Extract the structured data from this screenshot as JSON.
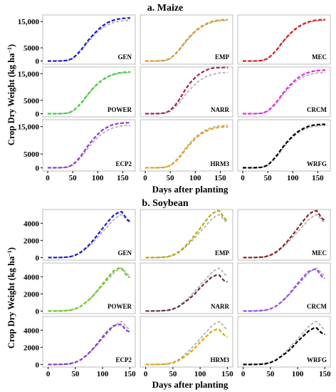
{
  "figure": {
    "y_label_prefix": "Crop Dry Weight (kg ha",
    "y_label_sup": "−1",
    "y_label_suffix": ")"
  },
  "colors": {
    "reference": "#aaaaaa",
    "GEN": "#1a1ad6",
    "EMP": "#e0961e",
    "MEC": "#e01818",
    "POWER": "#33d633",
    "NARR": "#aa2244",
    "CRCM": "#ee22ee",
    "ECP2": "#9933dd",
    "HRM3": "#f0a010",
    "WRFG": "#000000"
  },
  "soybean_colors": {
    "GEN": "#1a1ad6",
    "EMP": "#b8a800",
    "MEC": "#882222",
    "POWER": "#66cc11",
    "NARR": "#663333",
    "CRCM": "#9944ee",
    "ECP2": "#8833cc",
    "HRM3": "#ddaa00",
    "WRFG": "#000000"
  },
  "chart_data": [
    {
      "type": "line",
      "title": "a. Maize",
      "ylabel": "Crop Dry Weight (kg ha−1)",
      "xlabel": "Days after planting",
      "xlim": [
        -10,
        175
      ],
      "ylim": [
        -1200,
        17500
      ],
      "xticks": [
        0,
        50,
        100,
        150
      ],
      "yticks": [
        0,
        5000,
        15000
      ],
      "x": [
        0,
        10,
        20,
        30,
        40,
        50,
        60,
        70,
        80,
        90,
        100,
        110,
        120,
        130,
        140,
        150,
        160,
        165
      ],
      "reference": [
        0,
        0,
        0,
        50,
        200,
        900,
        2500,
        4500,
        7000,
        9200,
        11100,
        12600,
        13700,
        14500,
        15000,
        15300,
        15400,
        15400
      ],
      "panels": [
        {
          "name": "GEN",
          "values": [
            0,
            0,
            0,
            60,
            250,
            1000,
            2800,
            5000,
            7600,
            9800,
            11800,
            13400,
            14600,
            15400,
            15900,
            16200,
            16300,
            16300
          ]
        },
        {
          "name": "EMP",
          "values": [
            0,
            0,
            0,
            55,
            230,
            950,
            2650,
            4750,
            7300,
            9500,
            11400,
            12900,
            14000,
            14800,
            15300,
            15600,
            15700,
            15700
          ]
        },
        {
          "name": "MEC",
          "values": [
            0,
            0,
            0,
            55,
            230,
            950,
            2650,
            4750,
            7300,
            9500,
            11400,
            12900,
            14000,
            14800,
            15300,
            15600,
            15700,
            15700
          ]
        },
        {
          "name": "POWER",
          "values": [
            0,
            0,
            0,
            55,
            220,
            950,
            2600,
            4700,
            7200,
            9400,
            11300,
            12800,
            13900,
            14700,
            15200,
            15500,
            15600,
            15600
          ]
        },
        {
          "name": "NARR",
          "values": [
            0,
            0,
            0,
            70,
            300,
            1200,
            3200,
            5800,
            9000,
            11600,
            13600,
            15100,
            16200,
            16900,
            17200,
            17300,
            17300,
            17300
          ]
        },
        {
          "name": "CRCM",
          "values": [
            0,
            0,
            0,
            60,
            250,
            1000,
            2800,
            5000,
            7600,
            9800,
            11800,
            13400,
            14600,
            15400,
            15900,
            16200,
            16300,
            16300
          ]
        },
        {
          "name": "ECP2",
          "values": [
            0,
            0,
            0,
            60,
            260,
            1050,
            2900,
            5200,
            7900,
            10200,
            12200,
            13800,
            14900,
            15700,
            16100,
            16300,
            16400,
            16400
          ]
        },
        {
          "name": "HRM3",
          "values": [
            0,
            0,
            0,
            40,
            170,
            750,
            2200,
            4100,
            6500,
            8700,
            10600,
            12100,
            13200,
            14000,
            14500,
            14800,
            14900,
            14900
          ]
        },
        {
          "name": "WRFG",
          "values": [
            0,
            0,
            0,
            55,
            240,
            980,
            2750,
            4950,
            7500,
            9700,
            11600,
            13100,
            14200,
            15000,
            15500,
            15700,
            15800,
            15800
          ]
        }
      ]
    },
    {
      "type": "line",
      "title": "b. Soybean",
      "ylabel": "Crop Dry Weight (kg ha−1)",
      "xlabel": "Days after planting",
      "xlim": [
        -10,
        160
      ],
      "ylim": [
        -300,
        5600
      ],
      "xticks": [
        0,
        50,
        100,
        150
      ],
      "yticks": [
        0,
        2000,
        4000
      ],
      "x": [
        0,
        10,
        20,
        30,
        40,
        50,
        60,
        70,
        80,
        90,
        100,
        110,
        120,
        130,
        135,
        140,
        145,
        150
      ],
      "reference": [
        0,
        0,
        10,
        30,
        80,
        250,
        550,
        1050,
        1600,
        2300,
        3000,
        3700,
        4400,
        4900,
        5000,
        4700,
        4300,
        4100
      ],
      "panels": [
        {
          "name": "GEN",
          "values": [
            0,
            0,
            10,
            35,
            90,
            280,
            620,
            1150,
            1800,
            2600,
            3400,
            4200,
            4900,
            5300,
            5350,
            4900,
            4450,
            4200
          ]
        },
        {
          "name": "EMP",
          "values": [
            0,
            0,
            10,
            35,
            90,
            280,
            620,
            1150,
            1800,
            2600,
            3400,
            4250,
            5000,
            5450,
            5450,
            5000,
            4550,
            4300
          ]
        },
        {
          "name": "MEC",
          "values": [
            0,
            0,
            10,
            35,
            90,
            280,
            620,
            1150,
            1800,
            2600,
            3400,
            4250,
            5000,
            5450,
            5450,
            5000,
            4550,
            4300
          ]
        },
        {
          "name": "POWER",
          "values": [
            0,
            0,
            10,
            30,
            80,
            250,
            560,
            1050,
            1600,
            2350,
            3150,
            3950,
            4650,
            5000,
            5000,
            4500,
            4100,
            3900
          ]
        },
        {
          "name": "NARR",
          "values": [
            0,
            0,
            10,
            30,
            70,
            220,
            500,
            950,
            1400,
            2000,
            2700,
            3300,
            3900,
            4200,
            4200,
            3800,
            3500,
            3400
          ]
        },
        {
          "name": "CRCM",
          "values": [
            0,
            0,
            10,
            30,
            80,
            250,
            560,
            1050,
            1650,
            2400,
            3200,
            3950,
            4600,
            4850,
            4850,
            4400,
            4000,
            3800
          ]
        },
        {
          "name": "ECP2",
          "values": [
            0,
            0,
            10,
            30,
            80,
            250,
            560,
            1050,
            1650,
            2400,
            3200,
            3950,
            4500,
            4650,
            4650,
            4250,
            3950,
            3800
          ]
        },
        {
          "name": "HRM3",
          "values": [
            0,
            0,
            10,
            25,
            60,
            190,
            450,
            850,
            1300,
            1900,
            2600,
            3200,
            3800,
            4100,
            4100,
            3700,
            3400,
            3200
          ]
        },
        {
          "name": "WRFG",
          "values": [
            0,
            0,
            10,
            25,
            70,
            220,
            500,
            950,
            1400,
            2000,
            2700,
            3300,
            3900,
            4250,
            4250,
            3900,
            3650,
            3500
          ]
        }
      ]
    }
  ]
}
